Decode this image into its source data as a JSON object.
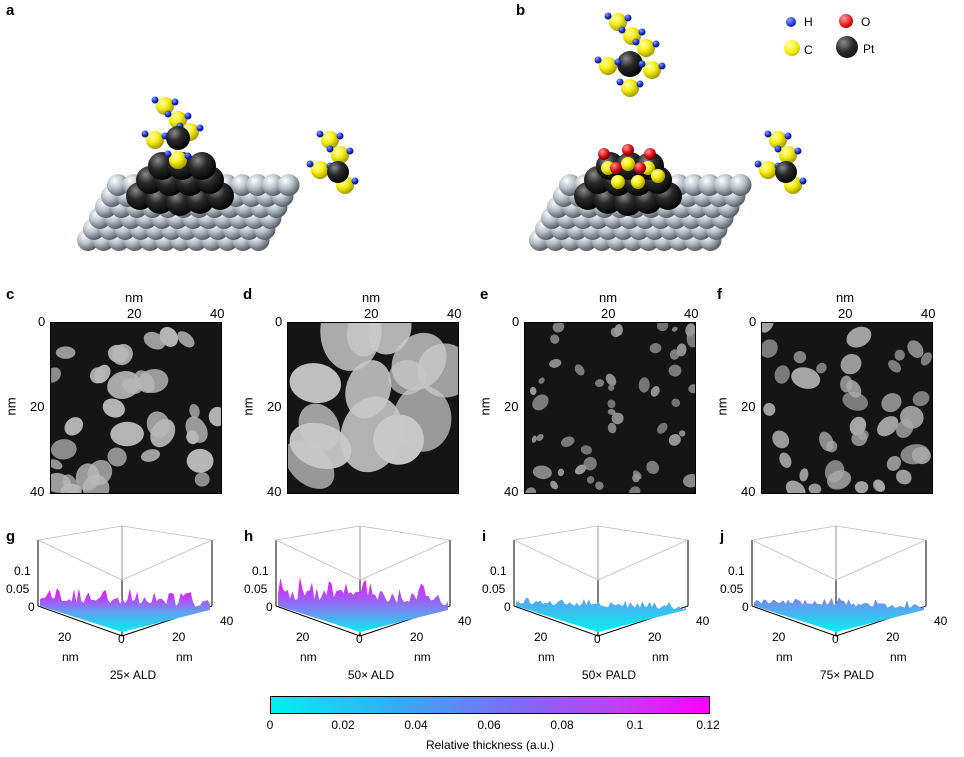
{
  "panels_top": [
    {
      "label": "a"
    },
    {
      "label": "b"
    }
  ],
  "legend": {
    "items": [
      {
        "symbol": "H",
        "color": "#1a2fd6"
      },
      {
        "symbol": "O",
        "color": "#e01010"
      },
      {
        "symbol": "C",
        "color": "#f5ee10"
      },
      {
        "symbol": "Pt",
        "color": "#2e2e2e"
      }
    ]
  },
  "stem_panels": [
    {
      "label": "c",
      "top_axis_label": "nm",
      "top_ticks": [
        "20",
        "40"
      ],
      "left_axis_label": "nm",
      "left_ticks": [
        "0",
        "20",
        "40"
      ],
      "brightness": "#b8b8b8"
    },
    {
      "label": "d",
      "top_axis_label": "nm",
      "top_ticks": [
        "20",
        "40"
      ],
      "left_axis_label": "nm",
      "left_ticks": [
        "0",
        "20",
        "40"
      ],
      "brightness": "#c8c8c8"
    },
    {
      "label": "e",
      "top_axis_label": "nm",
      "top_ticks": [
        "20",
        "40"
      ],
      "left_axis_label": "nm",
      "left_ticks": [
        "0",
        "20",
        "40"
      ],
      "brightness": "#9a9a9a"
    },
    {
      "label": "f",
      "top_axis_label": "nm",
      "top_ticks": [
        "20",
        "40"
      ],
      "left_axis_label": "nm",
      "left_ticks": [
        "0",
        "20",
        "40"
      ],
      "brightness": "#a8a8a8"
    }
  ],
  "surface_panels": [
    {
      "label": "g",
      "z_ticks": [
        "0.1",
        "0.05",
        "0"
      ],
      "x_ticks": [
        "20",
        "0"
      ],
      "y_ticks": [
        "20",
        "40"
      ],
      "x_label": "nm",
      "y_label": "nm",
      "caption": "25× ALD",
      "level": 0.065
    },
    {
      "label": "h",
      "z_ticks": [
        "0.1",
        "0.05",
        "0"
      ],
      "x_ticks": [
        "20",
        "0"
      ],
      "y_ticks": [
        "20",
        "40"
      ],
      "x_label": "nm",
      "y_label": "nm",
      "caption": "50× ALD",
      "level": 0.1
    },
    {
      "label": "i",
      "z_ticks": [
        "0.1",
        "0.05",
        "0"
      ],
      "x_ticks": [
        "20",
        "0"
      ],
      "y_ticks": [
        "20",
        "40"
      ],
      "x_label": "nm",
      "y_label": "nm",
      "caption": "50× PALD",
      "level": 0.03
    },
    {
      "label": "j",
      "z_ticks": [
        "0.1",
        "0.05",
        "0"
      ],
      "x_ticks": [
        "20",
        "0"
      ],
      "y_ticks": [
        "20",
        "40"
      ],
      "x_label": "nm",
      "y_label": "nm",
      "caption": "75× PALD",
      "level": 0.04
    }
  ],
  "colorbar": {
    "ticks": [
      "0",
      "0.02",
      "0.04",
      "0.06",
      "0.08",
      "0.1",
      "0.12"
    ],
    "label": "Relative thickness (a.u.)",
    "color_low": "#00f0f0",
    "color_high": "#ff00ff"
  }
}
